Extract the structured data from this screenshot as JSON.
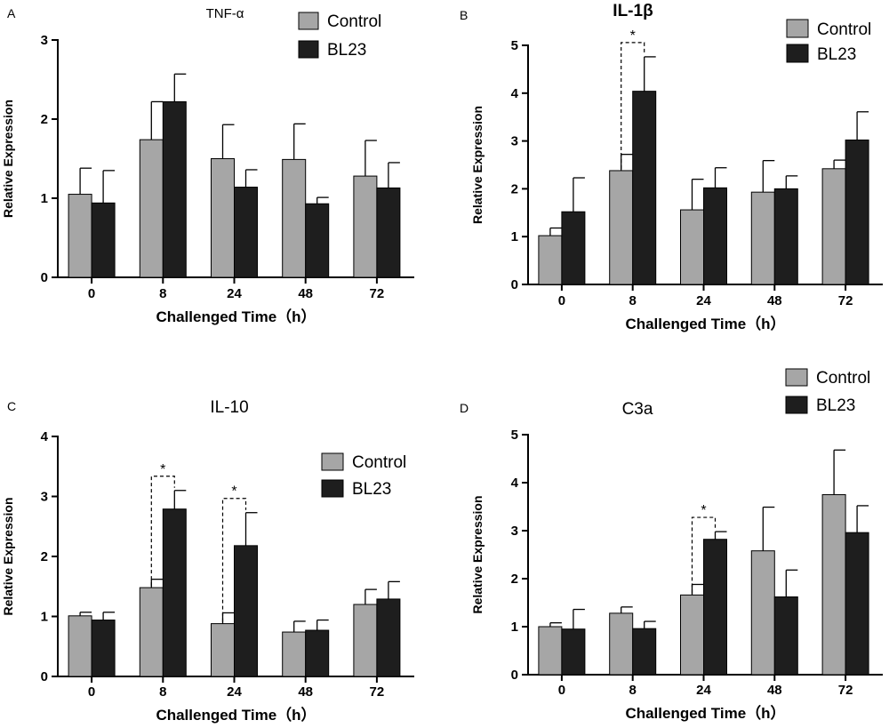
{
  "colors": {
    "control": "#a6a6a6",
    "bl23": "#1e1e1e"
  },
  "chart_data": [
    {
      "panel": "A",
      "type": "bar",
      "title": "TNF-α",
      "xlabel": "Challenged Time（h）",
      "ylabel": "Relative Expression",
      "categories": [
        "0",
        "8",
        "24",
        "48",
        "72"
      ],
      "ylim": [
        0,
        3
      ],
      "yticks": [
        "0",
        "1",
        "2",
        "3"
      ],
      "series": [
        {
          "name": "Control",
          "values": [
            1.05,
            1.74,
            1.5,
            1.49,
            1.28
          ],
          "errors": [
            0.33,
            0.48,
            0.43,
            0.45,
            0.45
          ]
        },
        {
          "name": "BL23",
          "values": [
            0.94,
            2.22,
            1.14,
            0.93,
            1.13
          ],
          "errors": [
            0.41,
            0.35,
            0.22,
            0.08,
            0.32
          ]
        }
      ],
      "significance": [],
      "legend": [
        "Control",
        "BL23"
      ]
    },
    {
      "panel": "B",
      "type": "bar",
      "title": "IL-1β",
      "xlabel": "Challenged Time（h）",
      "ylabel": "Relative Expression",
      "categories": [
        "0",
        "8",
        "24",
        "48",
        "72"
      ],
      "ylim": [
        0,
        5
      ],
      "yticks": [
        "0",
        "1",
        "2",
        "3",
        "4",
        "5"
      ],
      "series": [
        {
          "name": "Control",
          "values": [
            1.02,
            2.38,
            1.56,
            1.93,
            2.42
          ],
          "errors": [
            0.16,
            0.34,
            0.64,
            0.66,
            0.18
          ]
        },
        {
          "name": "BL23",
          "values": [
            1.52,
            4.04,
            2.02,
            2.0,
            3.02
          ],
          "errors": [
            0.71,
            0.72,
            0.42,
            0.27,
            0.59
          ]
        }
      ],
      "significance": [
        {
          "category": "8",
          "label": "*"
        }
      ],
      "legend": [
        "Control",
        "BL23"
      ]
    },
    {
      "panel": "C",
      "type": "bar",
      "title": "IL-10",
      "xlabel": "Challenged Time（h）",
      "ylabel": "Relative Expression",
      "categories": [
        "0",
        "8",
        "24",
        "48",
        "72"
      ],
      "ylim": [
        0,
        4
      ],
      "yticks": [
        "0",
        "1",
        "2",
        "3",
        "4"
      ],
      "series": [
        {
          "name": "Control",
          "values": [
            1.01,
            1.48,
            0.88,
            0.74,
            1.2
          ],
          "errors": [
            0.06,
            0.14,
            0.18,
            0.18,
            0.25
          ]
        },
        {
          "name": "BL23",
          "values": [
            0.94,
            2.79,
            2.18,
            0.77,
            1.29
          ],
          "errors": [
            0.13,
            0.31,
            0.55,
            0.17,
            0.29
          ]
        }
      ],
      "significance": [
        {
          "category": "8",
          "label": "*"
        },
        {
          "category": "24",
          "label": "*"
        }
      ],
      "legend": [
        "Control",
        "BL23"
      ]
    },
    {
      "panel": "D",
      "type": "bar",
      "title": "C3a",
      "xlabel": "Challenged Time（h）",
      "ylabel": "Relative Expression",
      "categories": [
        "0",
        "8",
        "24",
        "48",
        "72"
      ],
      "ylim": [
        0,
        5
      ],
      "yticks": [
        "0",
        "1",
        "2",
        "3",
        "4",
        "5"
      ],
      "series": [
        {
          "name": "Control",
          "values": [
            1.0,
            1.28,
            1.66,
            2.58,
            3.75
          ],
          "errors": [
            0.08,
            0.13,
            0.22,
            0.91,
            0.93
          ]
        },
        {
          "name": "BL23",
          "values": [
            0.95,
            0.96,
            2.82,
            1.62,
            2.96
          ],
          "errors": [
            0.41,
            0.15,
            0.16,
            0.56,
            0.56
          ]
        }
      ],
      "significance": [
        {
          "category": "24",
          "label": "*"
        }
      ],
      "legend": [
        "Control",
        "BL23"
      ]
    }
  ]
}
